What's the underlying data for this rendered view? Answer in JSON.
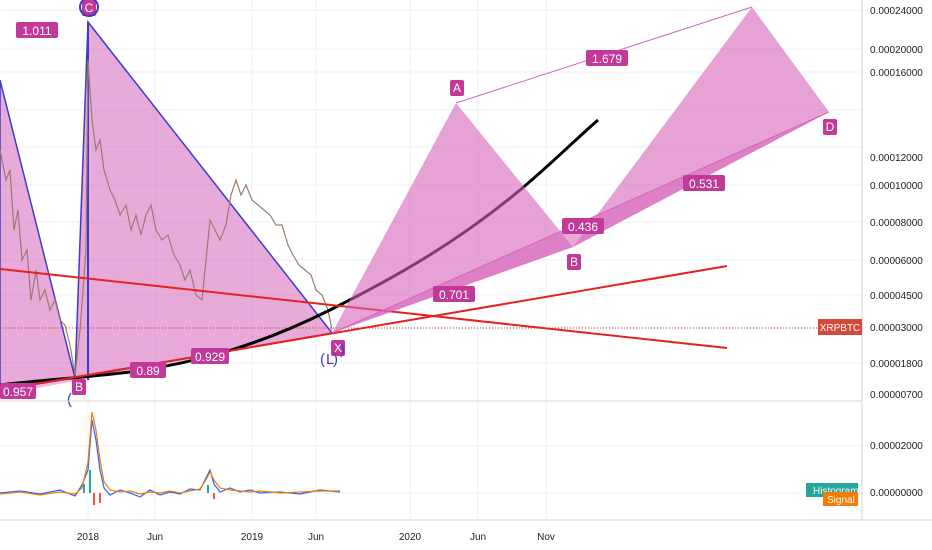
{
  "symbol_tag": "XRPBTC",
  "colors": {
    "pattern_fill": "#d664b9",
    "pattern_stroke": "#3c3cc8",
    "label_bg": "#c2399a",
    "trend": "#e8201e",
    "curve": "#000000",
    "candle": "#9b7b6e",
    "hist_green": "#26a69a",
    "signal": "#f57c00"
  },
  "price_axis": [
    "0.00024000",
    "0.00020000",
    "0.00016000",
    "0.00012000",
    "0.00010000",
    "0.00008000",
    "0.00006000",
    "0.00004500",
    "0.00003000",
    "0.00001800",
    "0.00000700"
  ],
  "indicator_axis": [
    "0.00002000",
    "0.00000000"
  ],
  "indicator_tags": [
    "Histogram",
    "Signal"
  ],
  "time_axis": [
    "2018",
    "Jun",
    "2019",
    "Jun",
    "2020",
    "Jun",
    "Nov"
  ],
  "ratios": [
    "1.011",
    "0.957",
    "0.89",
    "0.929",
    "1.679",
    "0.436",
    "0.701",
    "0.531"
  ],
  "points": [
    "C",
    "B",
    "X",
    "A",
    "B",
    "D",
    "(",
    ")",
    "(",
    "L",
    ")"
  ],
  "chart_data": {
    "type": "line",
    "description_series": [
      {
        "name": "XRPBTC",
        "x": [
          "2017-07",
          "2017-09",
          "2017-11",
          "2017-12",
          "2018-01",
          "2018-02",
          "2018-04",
          "2018-06",
          "2018-08",
          "2018-09",
          "2018-10",
          "2018-12",
          "2019-01",
          "2019-03",
          "2019-05",
          "2019-06",
          "2019-07"
        ],
        "y": [
          0.00012,
          4e-05,
          2.5e-05,
          1.7e-05,
          0.00022,
          0.00011,
          8e-05,
          6e-05,
          4e-05,
          8e-05,
          0.0001,
          9e-05,
          9e-05,
          8e-05,
          6e-05,
          4.5e-05,
          3e-05
        ]
      }
    ],
    "y_ticks": [
      0.00024,
      0.0002,
      0.00016,
      0.00012,
      0.0001,
      8e-05,
      6e-05,
      4.5e-05,
      3e-05,
      1.8e-05,
      7e-06
    ],
    "x_ticks": [
      "2018",
      "Jun",
      "2019",
      "Jun",
      "2020",
      "Jun",
      "Nov"
    ],
    "last_value_tag": "XRPBTC",
    "harmonic_ratios": [
      1.011,
      0.957,
      0.89,
      0.929,
      1.679,
      0.436,
      0.701,
      0.531
    ]
  }
}
